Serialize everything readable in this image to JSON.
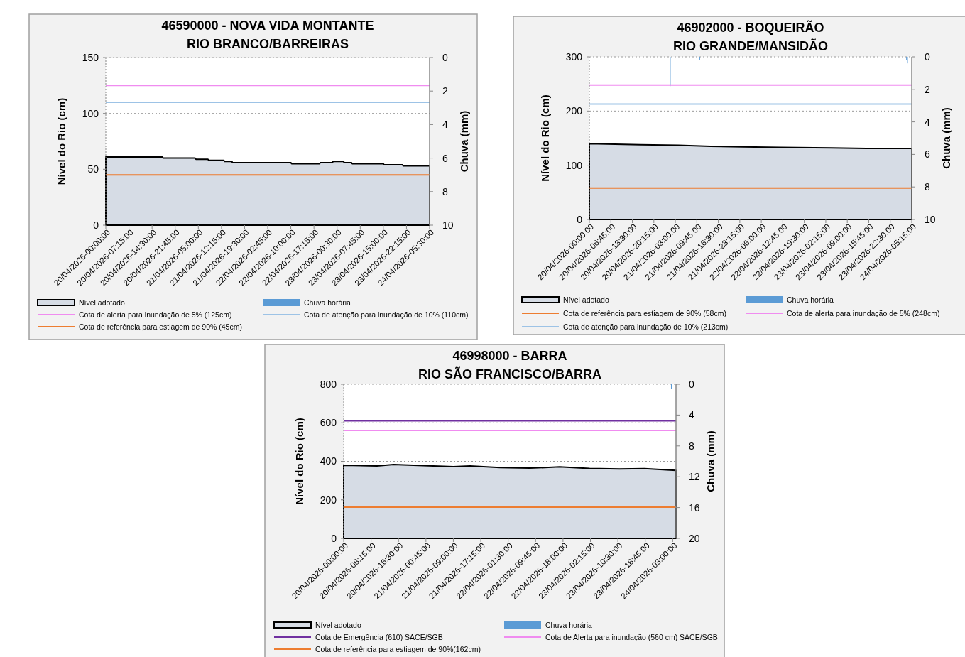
{
  "chart_data": [
    {
      "type": "area",
      "title": "46590000 - NOVA VIDA MONTANTE",
      "subtitle": "RIO BRANCO/BARREIRAS",
      "ylabel": "Nível do Rio (cm)",
      "y2label": "Chuva (mm)",
      "xlim": [
        "2026-04-20T00:00",
        "2026-04-24T05:30"
      ],
      "xticks": [
        {
          "value": "2026-04-20T00:00",
          "label": "20/04/2026-00:00:00"
        },
        {
          "value": "2026-04-20T07:15",
          "label": "20/04/2026-07:15:00"
        },
        {
          "value": "2026-04-20T14:30",
          "label": "20/04/2026-14:30:00"
        },
        {
          "value": "2026-04-20T21:45",
          "label": "20/04/2026-21:45:00"
        },
        {
          "value": "2026-04-21T05:00",
          "label": "21/04/2026-05:00:00"
        },
        {
          "value": "2026-04-21T12:15",
          "label": "21/04/2026-12:15:00"
        },
        {
          "value": "2026-04-21T19:30",
          "label": "21/04/2026-19:30:00"
        },
        {
          "value": "2026-04-22T02:45",
          "label": "22/04/2026-02:45:00"
        },
        {
          "value": "2026-04-22T10:00",
          "label": "22/04/2026-10:00:00"
        },
        {
          "value": "2026-04-22T17:15",
          "label": "22/04/2026-17:15:00"
        },
        {
          "value": "2026-04-23T00:30",
          "label": "23/04/2026-00:30:00"
        },
        {
          "value": "2026-04-23T07:45",
          "label": "23/04/2026-07:45:00"
        },
        {
          "value": "2026-04-23T15:00",
          "label": "23/04/2026-15:00:00"
        },
        {
          "value": "2026-04-23T22:15",
          "label": "23/04/2026-22:15:00"
        },
        {
          "value": "2026-04-24T05:30",
          "label": "24/04/2026-05:30:00"
        }
      ],
      "ylim": [
        0,
        150
      ],
      "yticks": [
        0,
        50,
        100,
        150
      ],
      "y2lim": [
        10,
        0
      ],
      "y2ticks": [
        0,
        2,
        4,
        6,
        8,
        10
      ],
      "grid": "y",
      "legend": "bottom",
      "series": [
        {
          "name": "Nível adotado",
          "color": "#d6dce5",
          "x": [
            "2026-04-20T00:00",
            "2026-04-20T17:45",
            "2026-04-20T18:00",
            "2026-04-21T04:00",
            "2026-04-21T04:15",
            "2026-04-21T08:00",
            "2026-04-21T08:15",
            "2026-04-21T13:00",
            "2026-04-21T13:15",
            "2026-04-21T15:30",
            "2026-04-21T15:45",
            "2026-04-22T10:00",
            "2026-04-22T10:15",
            "2026-04-22T19:00",
            "2026-04-22T19:15",
            "2026-04-22T23:00",
            "2026-04-22T23:15",
            "2026-04-23T02:30",
            "2026-04-23T02:45",
            "2026-04-23T05:00",
            "2026-04-23T05:15",
            "2026-04-23T15:00",
            "2026-04-23T15:15",
            "2026-04-23T21:00",
            "2026-04-23T21:15",
            "2026-04-24T05:30"
          ],
          "values": [
            61,
            61,
            60,
            60,
            59,
            59,
            58,
            58,
            57,
            57,
            56,
            56,
            55,
            55,
            56,
            56,
            57,
            57,
            56,
            56,
            55,
            55,
            54,
            54,
            53,
            53
          ]
        },
        {
          "name": "Chuva horária",
          "type": "bar",
          "axis": "y2",
          "color": "#5b9bd5"
        }
      ],
      "ref_lines": [
        {
          "axis": "y",
          "value": 125,
          "label": "Cota de alerta para inundação de 5% (125cm)",
          "color": "#f08cf0"
        },
        {
          "axis": "y",
          "value": 110,
          "label": "Cota de atenção para inundação de 10% (110cm)",
          "color": "#9dc3e6"
        },
        {
          "axis": "y",
          "value": 45,
          "label": "Cota de referência para estiagem de 90% (45cm)",
          "color": "#ed7d31"
        }
      ]
    },
    {
      "type": "area",
      "title": "46902000 - BOQUEIRÃO",
      "subtitle": "RIO GRANDE/MANSIDÃO",
      "ylabel": "Nível do Rio (cm)",
      "y2label": "Chuva (mm)",
      "xlim": [
        "2026-04-20T00:00",
        "2026-04-24T05:15"
      ],
      "xticks": [
        {
          "value": "2026-04-20T00:00",
          "label": "20/04/2026-00:00:00"
        },
        {
          "value": "2026-04-20T06:45",
          "label": "20/04/2026-06:45:00"
        },
        {
          "value": "2026-04-20T13:30",
          "label": "20/04/2026-13:30:00"
        },
        {
          "value": "2026-04-20T20:15",
          "label": "20/04/2026-20:15:00"
        },
        {
          "value": "2026-04-21T03:00",
          "label": "21/04/2026-03:00:00"
        },
        {
          "value": "2026-04-21T09:45",
          "label": "21/04/2026-09:45:00"
        },
        {
          "value": "2026-04-21T16:30",
          "label": "21/04/2026-16:30:00"
        },
        {
          "value": "2026-04-21T23:15",
          "label": "21/04/2026-23:15:00"
        },
        {
          "value": "2026-04-22T06:00",
          "label": "22/04/2026-06:00:00"
        },
        {
          "value": "2026-04-22T12:45",
          "label": "22/04/2026-12:45:00"
        },
        {
          "value": "2026-04-22T19:30",
          "label": "22/04/2026-19:30:00"
        },
        {
          "value": "2026-04-23T02:15",
          "label": "23/04/2026-02:15:00"
        },
        {
          "value": "2026-04-23T09:00",
          "label": "23/04/2026-09:00:00"
        },
        {
          "value": "2026-04-23T15:45",
          "label": "23/04/2026-15:45:00"
        },
        {
          "value": "2026-04-23T22:30",
          "label": "23/04/2026-22:30:00"
        },
        {
          "value": "2026-04-24T05:15",
          "label": "24/04/2026-05:15:00"
        }
      ],
      "ylim": [
        0,
        300
      ],
      "yticks": [
        0,
        100,
        200,
        300
      ],
      "y2lim": [
        10,
        0
      ],
      "y2ticks": [
        0,
        2,
        4,
        6,
        8,
        10
      ],
      "grid": "y",
      "legend": "bottom",
      "series": [
        {
          "name": "Nível adotado",
          "color": "#d6dce5",
          "x": [
            "2026-04-20T00:00",
            "2026-04-20T08:00",
            "2026-04-20T16:00",
            "2026-04-21T04:00",
            "2026-04-21T14:00",
            "2026-04-22T00:00",
            "2026-04-22T12:00",
            "2026-04-23T04:00",
            "2026-04-23T15:00",
            "2026-04-24T05:15"
          ],
          "values": [
            140,
            139,
            138,
            137,
            135,
            134,
            133,
            132,
            131,
            131
          ]
        },
        {
          "name": "Chuva horária",
          "type": "bar",
          "axis": "y2",
          "color": "#5b9bd5",
          "x": [
            "2026-04-21T01:15",
            "2026-04-21T10:30",
            "2026-04-24T03:30",
            "2026-04-24T03:45"
          ],
          "values": [
            1.8,
            0.2,
            0.2,
            0.4
          ]
        }
      ],
      "ref_lines": [
        {
          "axis": "y",
          "value": 58,
          "label": "Cota de referência para estiagem de 90% (58cm)",
          "color": "#ed7d31"
        },
        {
          "axis": "y",
          "value": 248,
          "label": "Cota de alerta para inundação de 5% (248cm)",
          "color": "#f08cf0"
        },
        {
          "axis": "y",
          "value": 213,
          "label": "Cota de atenção para inundação de 10% (213cm)",
          "color": "#9dc3e6"
        }
      ]
    },
    {
      "type": "area",
      "title": "46998000 - BARRA",
      "subtitle": "RIO SÃO FRANCISCO/BARRA",
      "ylabel": "Nível do Rio (cm)",
      "y2label": "Chuva (mm)",
      "xlim": [
        "2026-04-20T00:00",
        "2026-04-24T04:00"
      ],
      "xticks": [
        {
          "value": "2026-04-20T00:00",
          "label": "20/04/2026-00:00:00"
        },
        {
          "value": "2026-04-20T08:15",
          "label": "20/04/2026-08:15:00"
        },
        {
          "value": "2026-04-20T16:30",
          "label": "20/04/2026-16:30:00"
        },
        {
          "value": "2026-04-21T00:45",
          "label": "21/04/2026-00:45:00"
        },
        {
          "value": "2026-04-21T09:00",
          "label": "21/04/2026-09:00:00"
        },
        {
          "value": "2026-04-21T17:15",
          "label": "21/04/2026-17:15:00"
        },
        {
          "value": "2026-04-22T01:30",
          "label": "22/04/2026-01:30:00"
        },
        {
          "value": "2026-04-22T09:45",
          "label": "22/04/2026-09:45:00"
        },
        {
          "value": "2026-04-22T18:00",
          "label": "22/04/2026-18:00:00"
        },
        {
          "value": "2026-04-23T02:15",
          "label": "23/04/2026-02:15:00"
        },
        {
          "value": "2026-04-23T10:30",
          "label": "23/04/2026-10:30:00"
        },
        {
          "value": "2026-04-23T18:45",
          "label": "23/04/2026-18:45:00"
        },
        {
          "value": "2026-04-24T03:00",
          "label": "24/04/2026-03:00:00"
        }
      ],
      "ylim": [
        0,
        800
      ],
      "yticks": [
        0,
        200,
        400,
        600,
        800
      ],
      "y2lim": [
        20,
        0
      ],
      "y2ticks": [
        0,
        4,
        8,
        12,
        16,
        20
      ],
      "grid": "y",
      "legend": "bottom",
      "series": [
        {
          "name": "Nível adotado",
          "color": "#d6dce5",
          "x": [
            "2026-04-20T00:00",
            "2026-04-20T10:00",
            "2026-04-20T15:00",
            "2026-04-21T00:00",
            "2026-04-21T09:00",
            "2026-04-21T14:00",
            "2026-04-21T23:00",
            "2026-04-22T08:00",
            "2026-04-22T17:00",
            "2026-04-23T02:00",
            "2026-04-23T11:00",
            "2026-04-23T18:30",
            "2026-04-24T04:00"
          ],
          "values": [
            380,
            376,
            383,
            378,
            372,
            376,
            368,
            365,
            371,
            363,
            360,
            362,
            353
          ]
        },
        {
          "name": "Chuva horária",
          "type": "bar",
          "axis": "y2",
          "color": "#5b9bd5",
          "x": [
            "2026-04-24T02:30"
          ],
          "values": [
            0.6
          ]
        }
      ],
      "ref_lines": [
        {
          "axis": "y",
          "value": 610,
          "label": "Cota de Emergência (610) SACE/SGB",
          "color": "#7030a0"
        },
        {
          "axis": "y",
          "value": 560,
          "label": "Cota de Alerta para inundação (560 cm) SACE/SGB",
          "color": "#f08cf0"
        },
        {
          "axis": "y",
          "value": 162,
          "label": "Cota de referência para estiagem de 90%(162cm)",
          "color": "#ed7d31"
        }
      ]
    }
  ]
}
